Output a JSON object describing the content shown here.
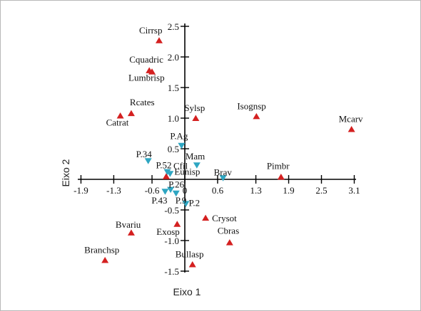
{
  "colors": {
    "species": "#d42020",
    "sites": "#2ea6c2",
    "axis": "#000000"
  },
  "chart_data": {
    "type": "scatter",
    "title": "",
    "xlabel": "Eixo 1",
    "ylabel": "Eixo 2",
    "xlim": [
      -2.0,
      3.2
    ],
    "ylim": [
      -1.55,
      2.55
    ],
    "x_ticks": [
      -1.9,
      -1.3,
      -0.6,
      0.0,
      0.6,
      1.3,
      1.9,
      2.5,
      3.1
    ],
    "x_tick_labels": [
      "-1.9",
      "-1.3",
      "-0.6",
      "0",
      "0.6",
      "1.3",
      "1.9",
      "2.5",
      "3.1"
    ],
    "y_ticks": [
      2.5,
      2.0,
      1.5,
      1.0,
      0.5,
      -0.5,
      -1.0,
      -1.5
    ],
    "y_tick_labels": [
      "2.5",
      "2.0",
      "1.5",
      "1.0",
      "0.5",
      "-0.5",
      "-1.0",
      "-1.5"
    ],
    "grid": false,
    "series": [
      {
        "marker": "triangle-up",
        "points": [
          {
            "label": "Cirrsp",
            "x": -0.47,
            "y": 2.27
          },
          {
            "label": "Cquadric",
            "x": -0.65,
            "y": 1.78
          },
          {
            "label": "Lumbrisp",
            "x": -0.6,
            "y": 1.76
          },
          {
            "label": "Rcates",
            "x": -0.98,
            "y": 1.08
          },
          {
            "label": "Catrat",
            "x": -1.18,
            "y": 1.04
          },
          {
            "label": "Sylsp",
            "x": 0.2,
            "y": 1.0
          },
          {
            "label": "Isognsp",
            "x": 1.31,
            "y": 1.03
          },
          {
            "label": "Mcarv",
            "x": 3.05,
            "y": 0.82
          },
          {
            "label": "Cfil",
            "x": -0.34,
            "y": 0.05
          },
          {
            "label": "Pimbr",
            "x": 1.76,
            "y": 0.04
          },
          {
            "label": "Crysot",
            "x": 0.38,
            "y": -0.63
          },
          {
            "label": "Exosp",
            "x": -0.14,
            "y": -0.73
          },
          {
            "label": "Bvariu",
            "x": -0.98,
            "y": -0.87
          },
          {
            "label": "Cbras",
            "x": 0.82,
            "y": -1.03
          },
          {
            "label": "Branchsp",
            "x": -1.46,
            "y": -1.32
          },
          {
            "label": "Bullasp",
            "x": 0.14,
            "y": -1.39
          }
        ]
      },
      {
        "marker": "triangle-down",
        "points": [
          {
            "label": "P.Ag",
            "x": -0.06,
            "y": 0.55
          },
          {
            "label": "P.34",
            "x": -0.67,
            "y": 0.3
          },
          {
            "label": "Mam",
            "x": 0.22,
            "y": 0.23
          },
          {
            "label": "P.52",
            "x": -0.32,
            "y": 0.12
          },
          {
            "label": "Eunisp",
            "x": -0.27,
            "y": 0.09
          },
          {
            "label": "Brav",
            "x": 0.7,
            "y": 0.02
          },
          {
            "label": "P.26",
            "x": -0.26,
            "y": -0.17
          },
          {
            "label": "P.43",
            "x": -0.36,
            "y": -0.2
          },
          {
            "label": "P.9",
            "x": -0.16,
            "y": -0.23
          },
          {
            "label": "P.2",
            "x": 0.02,
            "y": -0.4
          }
        ]
      }
    ]
  }
}
